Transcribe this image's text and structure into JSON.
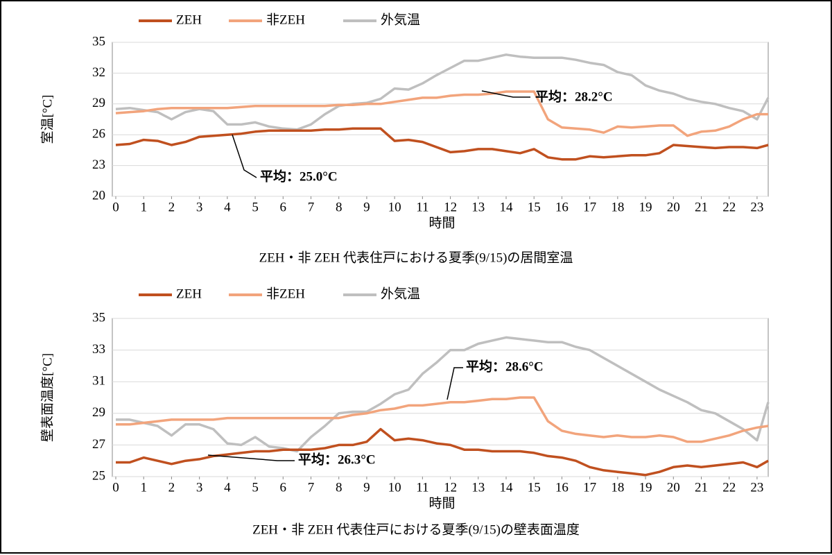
{
  "chart_data": [
    {
      "type": "line",
      "ylabel": "室温[°C]",
      "xlabel": "時間",
      "caption": "ZEH・非 ZEH 代表住戸における夏季(9/15)の居間室温",
      "annotations": [
        "平均：28.2°C",
        "平均：25.0°C"
      ],
      "xlim": [
        0,
        23.4
      ],
      "xticks": [
        0,
        1,
        2,
        3,
        4,
        5,
        6,
        7,
        8,
        9,
        10,
        11,
        12,
        13,
        14,
        15,
        16,
        17,
        18,
        19,
        20,
        21,
        22,
        23
      ],
      "ylim": [
        20,
        35
      ],
      "yticks": [
        20,
        23,
        26,
        29,
        32,
        35
      ],
      "legend": "top",
      "x": [
        0,
        0.5,
        1,
        1.5,
        2,
        2.5,
        3,
        3.5,
        4,
        4.5,
        5,
        5.5,
        6,
        6.5,
        7,
        7.5,
        8,
        8.5,
        9,
        9.5,
        10,
        10.5,
        11,
        11.5,
        12,
        12.5,
        13,
        13.5,
        14,
        14.5,
        15,
        15.5,
        16,
        16.5,
        17,
        17.5,
        18,
        18.5,
        19,
        19.5,
        20,
        20.5,
        21,
        21.5,
        22,
        22.5,
        23,
        23.4
      ],
      "series": [
        {
          "name": "ZEH",
          "color": "#c0501f",
          "values": [
            25.0,
            25.1,
            25.5,
            25.4,
            25.0,
            25.3,
            25.8,
            25.9,
            26.0,
            26.1,
            26.3,
            26.4,
            26.4,
            26.4,
            26.4,
            26.5,
            26.5,
            26.6,
            26.6,
            26.6,
            25.4,
            25.5,
            25.3,
            24.8,
            24.3,
            24.4,
            24.6,
            24.6,
            24.4,
            24.2,
            24.6,
            23.8,
            23.6,
            23.6,
            23.9,
            23.8,
            23.9,
            24.0,
            24.0,
            24.2,
            25.0,
            24.9,
            24.8,
            24.7,
            24.8,
            24.8,
            24.7,
            25.0
          ]
        },
        {
          "name": "非ZEH",
          "color": "#f2a47c",
          "values": [
            28.1,
            28.2,
            28.3,
            28.5,
            28.6,
            28.6,
            28.6,
            28.6,
            28.6,
            28.7,
            28.8,
            28.8,
            28.8,
            28.8,
            28.8,
            28.8,
            28.9,
            28.9,
            29.0,
            29.0,
            29.2,
            29.4,
            29.6,
            29.6,
            29.8,
            29.9,
            29.9,
            30.0,
            30.2,
            30.2,
            30.2,
            27.5,
            26.7,
            26.6,
            26.5,
            26.2,
            26.8,
            26.7,
            26.8,
            26.9,
            26.9,
            25.9,
            26.3,
            26.4,
            26.8,
            27.5,
            28.0,
            28.0
          ]
        },
        {
          "name": "外気温",
          "color": "#bfbfbf",
          "values": [
            28.5,
            28.6,
            28.4,
            28.2,
            27.5,
            28.2,
            28.5,
            28.3,
            27.0,
            27.0,
            27.2,
            26.8,
            26.6,
            26.5,
            27.0,
            28.0,
            28.8,
            29.0,
            29.1,
            29.5,
            30.5,
            30.4,
            31.0,
            31.8,
            32.5,
            33.2,
            33.2,
            33.5,
            33.8,
            33.6,
            33.5,
            33.5,
            33.5,
            33.3,
            33.0,
            32.8,
            32.1,
            31.8,
            30.8,
            30.3,
            30.0,
            29.5,
            29.2,
            29.0,
            28.6,
            28.3,
            27.5,
            29.6
          ]
        }
      ]
    },
    {
      "type": "line",
      "ylabel": "壁表面温度[°C]",
      "xlabel": "時間",
      "caption": "ZEH・非 ZEH 代表住戸における夏季(9/15)の壁表面温度",
      "annotations": [
        "平均：28.6°C",
        "平均：26.3°C"
      ],
      "xlim": [
        0,
        23.4
      ],
      "xticks": [
        0,
        1,
        2,
        3,
        4,
        5,
        6,
        7,
        8,
        9,
        10,
        11,
        12,
        13,
        14,
        15,
        16,
        17,
        18,
        19,
        20,
        21,
        22,
        23
      ],
      "ylim": [
        25,
        35
      ],
      "yticks": [
        25,
        27,
        29,
        31,
        33,
        35
      ],
      "legend": "top",
      "x": [
        0,
        0.5,
        1,
        1.5,
        2,
        2.5,
        3,
        3.5,
        4,
        4.5,
        5,
        5.5,
        6,
        6.5,
        7,
        7.5,
        8,
        8.5,
        9,
        9.5,
        10,
        10.5,
        11,
        11.5,
        12,
        12.5,
        13,
        13.5,
        14,
        14.5,
        15,
        15.5,
        16,
        16.5,
        17,
        17.5,
        18,
        18.5,
        19,
        19.5,
        20,
        20.5,
        21,
        21.5,
        22,
        22.5,
        23,
        23.4
      ],
      "series": [
        {
          "name": "ZEH",
          "color": "#c0501f",
          "values": [
            25.9,
            25.9,
            26.2,
            26.0,
            25.8,
            26.0,
            26.1,
            26.3,
            26.4,
            26.5,
            26.6,
            26.6,
            26.7,
            26.7,
            26.7,
            26.8,
            27.0,
            27.0,
            27.2,
            28.0,
            27.3,
            27.4,
            27.3,
            27.1,
            27.0,
            26.7,
            26.7,
            26.6,
            26.6,
            26.6,
            26.5,
            26.3,
            26.2,
            26.0,
            25.6,
            25.4,
            25.3,
            25.2,
            25.1,
            25.3,
            25.6,
            25.7,
            25.6,
            25.7,
            25.8,
            25.9,
            25.6,
            26.0
          ]
        },
        {
          "name": "非ZEH",
          "color": "#f2a47c",
          "values": [
            28.3,
            28.3,
            28.4,
            28.5,
            28.6,
            28.6,
            28.6,
            28.6,
            28.7,
            28.7,
            28.7,
            28.7,
            28.7,
            28.7,
            28.7,
            28.7,
            28.7,
            28.9,
            29.0,
            29.2,
            29.3,
            29.5,
            29.5,
            29.6,
            29.7,
            29.7,
            29.8,
            29.9,
            29.9,
            30.0,
            30.0,
            28.5,
            27.9,
            27.7,
            27.6,
            27.5,
            27.6,
            27.5,
            27.5,
            27.6,
            27.5,
            27.2,
            27.2,
            27.4,
            27.6,
            27.9,
            28.1,
            28.2
          ]
        },
        {
          "name": "外気温",
          "color": "#bfbfbf",
          "values": [
            28.6,
            28.6,
            28.4,
            28.2,
            27.6,
            28.3,
            28.3,
            28.0,
            27.1,
            27.0,
            27.5,
            26.9,
            26.8,
            26.6,
            27.5,
            28.2,
            29.0,
            29.1,
            29.1,
            29.6,
            30.2,
            30.5,
            31.5,
            32.2,
            33.0,
            33.0,
            33.4,
            33.6,
            33.8,
            33.7,
            33.6,
            33.5,
            33.5,
            33.2,
            33.0,
            32.5,
            32.0,
            31.5,
            31.0,
            30.5,
            30.1,
            29.7,
            29.2,
            29.0,
            28.5,
            28.0,
            27.3,
            29.7
          ]
        }
      ]
    }
  ]
}
